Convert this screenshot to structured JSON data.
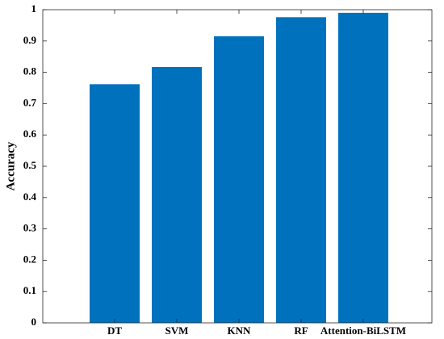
{
  "chart_data": {
    "type": "bar",
    "ylabel": "Accuracy",
    "categories": [
      "DT",
      "SVM",
      "KNN",
      "RF",
      "Attention-BiLSTM"
    ],
    "values": [
      0.762,
      0.817,
      0.915,
      0.976,
      0.99
    ],
    "color": "#0072bd",
    "ylim": [
      0,
      1
    ],
    "yticks": [
      0,
      0.1,
      0.2,
      0.3,
      0.4,
      0.5,
      0.6,
      0.7,
      0.8,
      0.9,
      1
    ],
    "grid": false
  }
}
